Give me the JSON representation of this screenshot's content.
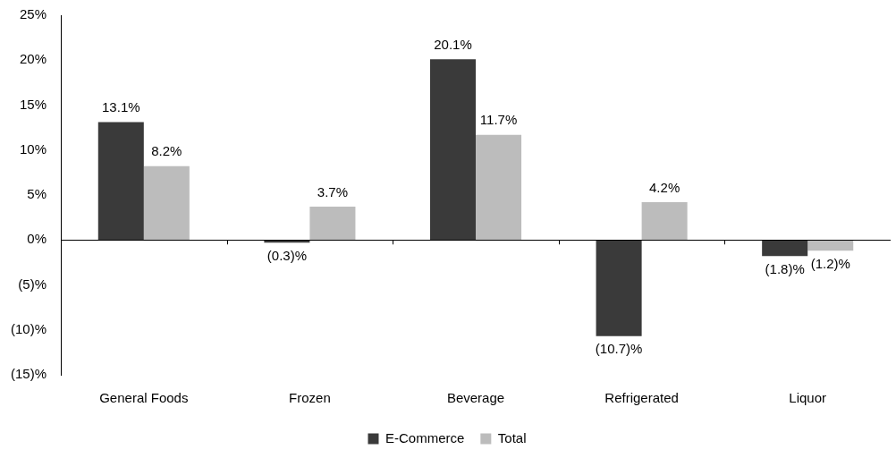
{
  "chart_data": {
    "type": "bar",
    "categories": [
      "General Foods",
      "Frozen",
      "Beverage",
      "Refrigerated",
      "Liquor"
    ],
    "series": [
      {
        "name": "E-Commerce",
        "color": "#3a3a3a",
        "values": [
          13.1,
          -0.3,
          20.1,
          -10.7,
          -1.8
        ],
        "value_labels": [
          "13.1%",
          "(0.3)%",
          "20.1%",
          "(10.7)%",
          "(1.8)%"
        ]
      },
      {
        "name": "Total",
        "color": "#bcbcbc",
        "values": [
          8.2,
          3.7,
          11.7,
          4.2,
          -1.2
        ],
        "value_labels": [
          "8.2%",
          "3.7%",
          "11.7%",
          "4.2%",
          "(1.2)%"
        ]
      }
    ],
    "ylim": [
      -15,
      25
    ],
    "yticks": [
      {
        "value": -15,
        "label": "(15)%"
      },
      {
        "value": -10,
        "label": "(10)%"
      },
      {
        "value": -5,
        "label": "(5)%"
      },
      {
        "value": 0,
        "label": "0%"
      },
      {
        "value": 5,
        "label": "5%"
      },
      {
        "value": 10,
        "label": "10%"
      },
      {
        "value": 15,
        "label": "15%"
      },
      {
        "value": 20,
        "label": "20%"
      },
      {
        "value": 25,
        "label": "25%"
      }
    ],
    "grid": false,
    "legend": "bottom",
    "data_labels": true
  }
}
